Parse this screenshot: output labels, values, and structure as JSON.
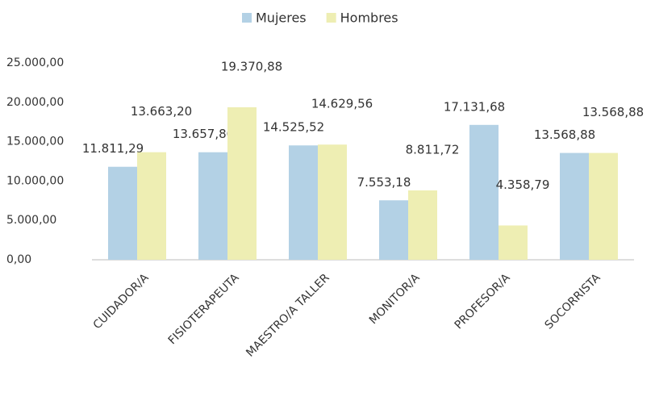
{
  "chart_data": {
    "type": "bar",
    "categories": [
      "CUIDADOR/A",
      "FISIOTERAPEUTA",
      "MAESTRO/A TALLER",
      "MONITOR/A",
      "PROFESOR/A",
      "SOCORRISTA"
    ],
    "series": [
      {
        "name": "Mujeres",
        "color": "#b3d1e5",
        "values": [
          11811.29,
          13657.8,
          14525.52,
          7553.18,
          17131.68,
          13568.88
        ],
        "value_labels": [
          "11.811,29",
          "13.657,80",
          "14.525,52",
          "7.553,18",
          "17.131,68",
          "13.568,88"
        ]
      },
      {
        "name": "Hombres",
        "color": "#eeeeb3",
        "values": [
          13663.2,
          19370.88,
          14629.56,
          8811.72,
          4358.79,
          13568.88
        ],
        "value_labels": [
          "13.663,20",
          "19.370,88",
          "14.629,56",
          "8.811,72",
          "4.358,79",
          "13.568,88"
        ]
      }
    ],
    "ylim": [
      0,
      25000
    ],
    "yticks": [
      {
        "value": 0,
        "label": "0,00"
      },
      {
        "value": 5000,
        "label": "5.000,00"
      },
      {
        "value": 10000,
        "label": "10.000,00"
      },
      {
        "value": 15000,
        "label": "15.000,00"
      },
      {
        "value": 20000,
        "label": "20.000,00"
      },
      {
        "value": 25000,
        "label": "25.000,00"
      }
    ],
    "grid": false,
    "legend": "top"
  }
}
